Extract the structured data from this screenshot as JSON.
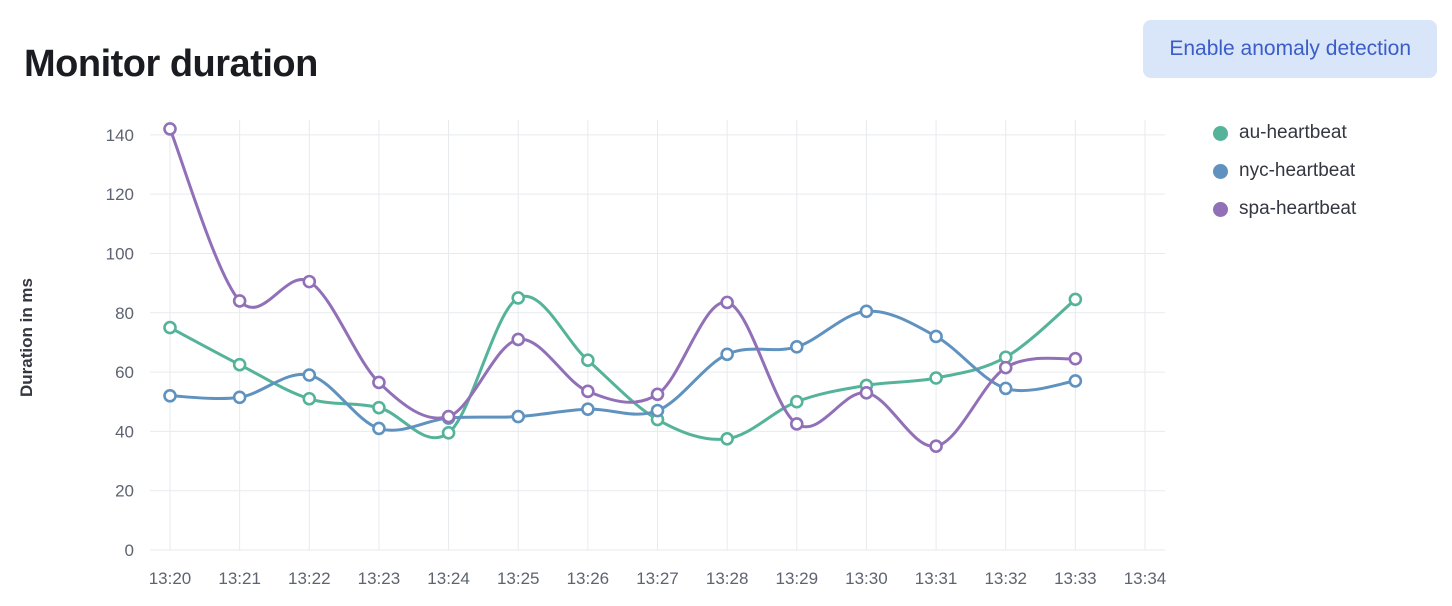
{
  "header": {
    "title": "Monitor duration",
    "button_label": "Enable anomaly detection",
    "button_bg": "#d9e5f8",
    "button_text_color": "#3a5dc8"
  },
  "chart_data": {
    "type": "line",
    "title": "Monitor duration",
    "xlabel": "",
    "ylabel": "Duration in ms",
    "categories": [
      "13:20",
      "13:21",
      "13:22",
      "13:23",
      "13:24",
      "13:25",
      "13:26",
      "13:27",
      "13:28",
      "13:29",
      "13:30",
      "13:31",
      "13:32",
      "13:33"
    ],
    "x_ticks": [
      "13:20",
      "13:21",
      "13:22",
      "13:23",
      "13:24",
      "13:25",
      "13:26",
      "13:27",
      "13:28",
      "13:29",
      "13:30",
      "13:31",
      "13:32",
      "13:33",
      "13:34"
    ],
    "y_ticks": [
      0,
      20,
      40,
      60,
      80,
      100,
      120,
      140
    ],
    "ylim": [
      0,
      145
    ],
    "grid": true,
    "legend_position": "right",
    "series": [
      {
        "name": "au-heartbeat",
        "color": "#54b399",
        "values": [
          75,
          62.5,
          51,
          48,
          39.5,
          85,
          64,
          44,
          37.5,
          50,
          55.5,
          58,
          65,
          84.5
        ]
      },
      {
        "name": "nyc-heartbeat",
        "color": "#6092c0",
        "values": [
          52,
          51.5,
          59,
          41,
          44.5,
          45,
          47.5,
          47,
          66,
          68.5,
          80.5,
          72,
          54.5,
          57
        ]
      },
      {
        "name": "spa-heartbeat",
        "color": "#9170b8",
        "values": [
          142,
          84,
          90.5,
          56.5,
          45,
          71,
          53.5,
          52.5,
          83.5,
          42.5,
          53,
          35,
          61.5,
          64.5
        ]
      }
    ],
    "grid_color": "#e7eaee",
    "tick_label_color": "#5d6470"
  }
}
